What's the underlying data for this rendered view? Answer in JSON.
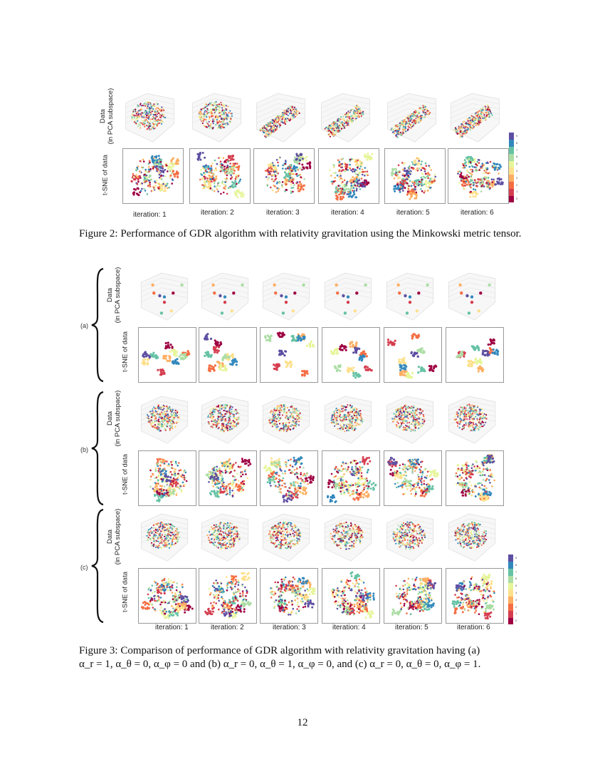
{
  "figure2": {
    "row_labels": {
      "pca": "Data\n(in PCA subspace)",
      "pca_line1": "Data",
      "pca_line2": "(in PCA subspace)",
      "tsne": "t-SNE of data"
    },
    "iterations": [
      "iteration: 1",
      "iteration: 2",
      "iteration: 3",
      "iteration: 4",
      "iteration: 5",
      "iteration: 6"
    ],
    "caption": "Figure 2: Performance of GDR algorithm with relativity gravitation using the Minkowski metric tensor."
  },
  "figure3": {
    "groups": [
      {
        "label": "(a)",
        "condition": "α_r = 1, α_θ = 0, α_φ = 0"
      },
      {
        "label": "(b)",
        "condition": "α_r = 0, α_θ = 1, α_φ = 0"
      },
      {
        "label": "(c)",
        "condition": "α_r = 0, α_θ = 0, α_φ = 1"
      }
    ],
    "row_labels": {
      "pca_line1": "Data",
      "pca_line2": "(in PCA subspace)",
      "tsne": "t-SNE of data"
    },
    "iterations": [
      "iteration: 1",
      "iteration: 2",
      "iteration: 3",
      "iteration: 4",
      "iteration: 5",
      "iteration: 6"
    ],
    "caption_line1": "Figure 3: Comparison of performance of GDR algorithm with relativity gravitation having (a)",
    "caption_line2": "α_r = 1, α_θ = 0, α_φ = 0 and (b) α_r = 0, α_θ = 1, α_φ = 0, and (c) α_r = 0, α_θ = 0, α_φ = 1."
  },
  "colorbar": {
    "ticks": [
      "0",
      "1",
      "2",
      "3",
      "4",
      "5",
      "6",
      "7",
      "8",
      "9"
    ],
    "colors": [
      "#9e0142",
      "#d53e4f",
      "#f46d43",
      "#fdae61",
      "#fee08b",
      "#e6f598",
      "#abdda4",
      "#66c2a5",
      "#3288bd",
      "#5e4fa2"
    ]
  },
  "page_number": "12"
}
